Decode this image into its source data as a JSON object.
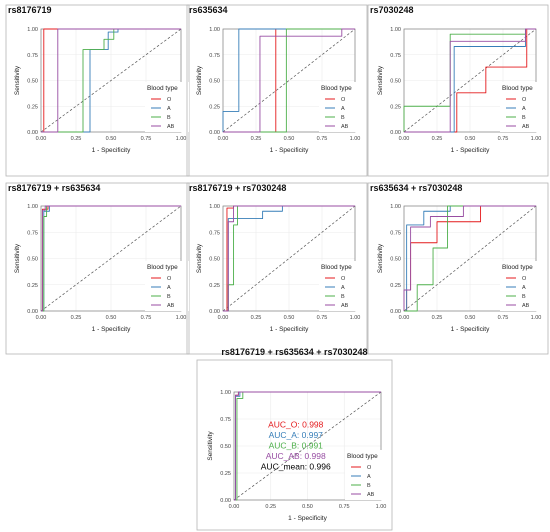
{
  "panels": [
    {
      "title": "rs8176719",
      "xlabel": "1 - Specificity",
      "ylabel": "Sensitivity",
      "legend_title": "Blood type",
      "legend_items": [
        "O",
        "A",
        "B",
        "AB"
      ]
    },
    {
      "title": "rs635634",
      "xlabel": "1 - Specificity",
      "ylabel": "Sensitivity",
      "legend_title": "Blood type",
      "legend_items": [
        "O",
        "A",
        "B",
        "AB"
      ]
    },
    {
      "title": "rs7030248",
      "xlabel": "1 - Specificity",
      "ylabel": "Sensitivity",
      "legend_title": "Blood type",
      "legend_items": [
        "O",
        "A",
        "B",
        "AB"
      ]
    },
    {
      "title": "rs8176719 + rs635634",
      "xlabel": "1 - Specificity",
      "ylabel": "Sensitivity",
      "legend_title": "Blood type",
      "legend_items": [
        "O",
        "A",
        "B",
        "AB"
      ]
    },
    {
      "title": "rs8176719 + rs7030248",
      "xlabel": "1 - Specificity",
      "ylabel": "Sensitivity",
      "legend_title": "Blood type",
      "legend_items": [
        "O",
        "A",
        "B",
        "AB"
      ]
    },
    {
      "title": "rs635634 + rs7030248",
      "xlabel": "1 - Specificity",
      "ylabel": "Sensitivity",
      "legend_title": "Blood type",
      "legend_items": [
        "O",
        "A",
        "B",
        "AB"
      ]
    },
    {
      "title": "rs8176719 + rs635634 + rs7030248",
      "xlabel": "1 - Specificity",
      "ylabel": "Sensitivity",
      "legend_title": "Blood type",
      "legend_items": [
        "O",
        "A",
        "B",
        "AB"
      ],
      "annotations": [
        {
          "text": "AUC_O: 0.998",
          "color": "#e41a1c"
        },
        {
          "text": "AUC_A: 0.997",
          "color": "#377eb8"
        },
        {
          "text": "AUC_B: 0.991",
          "color": "#4daf4a"
        },
        {
          "text": "AUC_AB: 0.998",
          "color": "#984ea3"
        },
        {
          "text": "AUC_mean: 0.996",
          "color": "#000000"
        }
      ]
    }
  ],
  "colors": {
    "O": "#e41a1c",
    "A": "#377eb8",
    "B": "#4daf4a",
    "AB": "#984ea3",
    "diagonal": "#555555",
    "grid": "#ebebeb"
  },
  "chart_data": [
    {
      "type": "line",
      "title": "rs8176719",
      "xlabel": "1 - Specificity",
      "ylabel": "Sensitivity",
      "xlim": [
        0,
        1
      ],
      "ylim": [
        0,
        1
      ],
      "x_ticks": [
        "0.00",
        "0.25",
        "0.50",
        "0.75",
        "1.00"
      ],
      "y_ticks": [
        "0.00",
        "0.25",
        "0.50",
        "0.75",
        "1.00"
      ],
      "grid": true,
      "legend_title": "Blood type",
      "legend_position": "right",
      "reference_line": [
        [
          0,
          0
        ],
        [
          1,
          1
        ]
      ],
      "series": [
        {
          "name": "O",
          "x": [
            0,
            0.02,
            0.02,
            1
          ],
          "y": [
            0,
            0,
            1,
            1
          ]
        },
        {
          "name": "A",
          "x": [
            0,
            0.35,
            0.35,
            0.48,
            0.48,
            0.55,
            0.55,
            1
          ],
          "y": [
            0,
            0,
            0.8,
            0.8,
            0.97,
            0.97,
            1,
            1
          ]
        },
        {
          "name": "B",
          "x": [
            0,
            0.3,
            0.3,
            0.45,
            0.45,
            0.52,
            0.52,
            1
          ],
          "y": [
            0,
            0,
            0.8,
            0.8,
            0.9,
            0.9,
            1,
            1
          ]
        },
        {
          "name": "AB",
          "x": [
            0,
            0.12,
            0.12,
            1
          ],
          "y": [
            0,
            0,
            1,
            1
          ]
        }
      ]
    },
    {
      "type": "line",
      "title": "rs635634",
      "xlabel": "1 - Specificity",
      "ylabel": "Sensitivity",
      "xlim": [
        0,
        1
      ],
      "ylim": [
        0,
        1
      ],
      "x_ticks": [
        "0.00",
        "0.25",
        "0.50",
        "0.75",
        "1.00"
      ],
      "y_ticks": [
        "0.00",
        "0.25",
        "0.50",
        "0.75",
        "1.00"
      ],
      "grid": true,
      "legend_title": "Blood type",
      "legend_position": "right",
      "reference_line": [
        [
          0,
          0
        ],
        [
          1,
          1
        ]
      ],
      "series": [
        {
          "name": "O",
          "x": [
            0,
            0.4,
            0.4,
            1
          ],
          "y": [
            0,
            0,
            1,
            1
          ]
        },
        {
          "name": "A",
          "x": [
            0,
            0,
            0.12,
            0.12,
            0.95,
            0.95,
            1
          ],
          "y": [
            0,
            0.2,
            0.2,
            1,
            1,
            1,
            1
          ]
        },
        {
          "name": "B",
          "x": [
            0,
            0.48,
            0.48,
            1
          ],
          "y": [
            0,
            0,
            1,
            1
          ]
        },
        {
          "name": "AB",
          "x": [
            0,
            0.28,
            0.28,
            0.9,
            0.9,
            1
          ],
          "y": [
            0,
            0,
            0.93,
            0.93,
            1,
            1
          ]
        }
      ]
    },
    {
      "type": "line",
      "title": "rs7030248",
      "xlabel": "1 - Specificity",
      "ylabel": "Sensitivity",
      "xlim": [
        0,
        1
      ],
      "ylim": [
        0,
        1
      ],
      "x_ticks": [
        "0.00",
        "0.25",
        "0.50",
        "0.75",
        "1.00"
      ],
      "y_ticks": [
        "0.00",
        "0.25",
        "0.50",
        "0.75",
        "1.00"
      ],
      "grid": true,
      "legend_title": "Blood type",
      "legend_position": "right",
      "reference_line": [
        [
          0,
          0
        ],
        [
          1,
          1
        ]
      ],
      "series": [
        {
          "name": "O",
          "x": [
            0,
            0.4,
            0.4,
            0.62,
            0.62,
            0.93,
            0.93,
            1
          ],
          "y": [
            0,
            0,
            0.38,
            0.38,
            0.63,
            0.63,
            1,
            1
          ]
        },
        {
          "name": "A",
          "x": [
            0,
            0.38,
            0.38,
            0.92,
            0.92,
            1
          ],
          "y": [
            0,
            0,
            0.83,
            0.83,
            1,
            1
          ]
        },
        {
          "name": "B",
          "x": [
            0,
            0,
            0.35,
            0.35,
            0.92,
            0.92,
            1
          ],
          "y": [
            0,
            0.25,
            0.25,
            0.95,
            0.95,
            1,
            1
          ]
        },
        {
          "name": "AB",
          "x": [
            0,
            0.35,
            0.35,
            0.92,
            0.92,
            1
          ],
          "y": [
            0,
            0,
            0.88,
            0.88,
            1,
            1
          ]
        }
      ]
    },
    {
      "type": "line",
      "title": "rs8176719 + rs635634",
      "xlabel": "1 - Specificity",
      "ylabel": "Sensitivity",
      "xlim": [
        0,
        1
      ],
      "ylim": [
        0,
        1
      ],
      "x_ticks": [
        "0.00",
        "0.25",
        "0.50",
        "0.75",
        "1.00"
      ],
      "y_ticks": [
        "0.00",
        "0.25",
        "0.50",
        "0.75",
        "1.00"
      ],
      "grid": true,
      "legend_title": "Blood type",
      "legend_position": "right",
      "reference_line": [
        [
          0,
          0
        ],
        [
          1,
          1
        ]
      ],
      "series": [
        {
          "name": "O",
          "x": [
            0,
            0.01,
            0.01,
            0.05,
            0.05,
            1
          ],
          "y": [
            0,
            0,
            0.97,
            0.97,
            1,
            1
          ]
        },
        {
          "name": "A",
          "x": [
            0,
            0.02,
            0.02,
            0.06,
            0.06,
            1
          ],
          "y": [
            0,
            0,
            0.95,
            0.95,
            1,
            1
          ]
        },
        {
          "name": "B",
          "x": [
            0,
            0.02,
            0.02,
            0.04,
            0.04,
            1
          ],
          "y": [
            0,
            0,
            0.9,
            0.9,
            1,
            1
          ]
        },
        {
          "name": "AB",
          "x": [
            0,
            0.01,
            0.01,
            0.03,
            0.03,
            1
          ],
          "y": [
            0,
            0,
            0.96,
            0.96,
            1,
            1
          ]
        }
      ]
    },
    {
      "type": "line",
      "title": "rs8176719 + rs7030248",
      "xlabel": "1 - Specificity",
      "ylabel": "Sensitivity",
      "xlim": [
        0,
        1
      ],
      "ylim": [
        0,
        1
      ],
      "x_ticks": [
        "0.00",
        "0.25",
        "0.50",
        "0.75",
        "1.00"
      ],
      "y_ticks": [
        "0.00",
        "0.25",
        "0.50",
        "0.75",
        "1.00"
      ],
      "grid": true,
      "legend_title": "Blood type",
      "legend_position": "right",
      "reference_line": [
        [
          0,
          0
        ],
        [
          1,
          1
        ]
      ],
      "series": [
        {
          "name": "O",
          "x": [
            0,
            0.03,
            0.03,
            0.08,
            0.08,
            1
          ],
          "y": [
            0,
            0,
            0.98,
            0.98,
            1,
            1
          ]
        },
        {
          "name": "A",
          "x": [
            0,
            0.04,
            0.04,
            0.3,
            0.3,
            0.45,
            0.45,
            1
          ],
          "y": [
            0,
            0,
            0.88,
            0.88,
            0.95,
            0.95,
            1,
            1
          ]
        },
        {
          "name": "B",
          "x": [
            0,
            0.04,
            0.04,
            0.08,
            0.08,
            0.11,
            0.11,
            1
          ],
          "y": [
            0,
            0,
            0.25,
            0.25,
            0.82,
            0.82,
            1,
            1
          ]
        },
        {
          "name": "AB",
          "x": [
            0,
            0.04,
            0.04,
            0.08,
            0.08,
            1
          ],
          "y": [
            0,
            0,
            0.85,
            0.85,
            1,
            1
          ]
        }
      ]
    },
    {
      "type": "line",
      "title": "rs635634 + rs7030248",
      "xlabel": "1 - Specificity",
      "ylabel": "Sensitivity",
      "xlim": [
        0,
        1
      ],
      "ylim": [
        0,
        1
      ],
      "x_ticks": [
        "0.00",
        "0.25",
        "0.50",
        "0.75",
        "1.00"
      ],
      "y_ticks": [
        "0.00",
        "0.25",
        "0.50",
        "0.75",
        "1.00"
      ],
      "grid": true,
      "legend_title": "Blood type",
      "legend_position": "right",
      "reference_line": [
        [
          0,
          0
        ],
        [
          1,
          1
        ]
      ],
      "series": [
        {
          "name": "O",
          "x": [
            0,
            0.02,
            0.02,
            0.05,
            0.05,
            0.25,
            0.25,
            0.58,
            0.58,
            1
          ],
          "y": [
            0,
            0,
            0.2,
            0.2,
            0.65,
            0.65,
            0.85,
            0.85,
            1,
            1
          ]
        },
        {
          "name": "A",
          "x": [
            0,
            0.02,
            0.02,
            0.15,
            0.15,
            0.35,
            0.35,
            1
          ],
          "y": [
            0,
            0,
            0.82,
            0.82,
            0.95,
            0.95,
            1,
            1
          ]
        },
        {
          "name": "B",
          "x": [
            0,
            0.1,
            0.1,
            0.22,
            0.22,
            0.33,
            0.33,
            1
          ],
          "y": [
            0,
            0,
            0.25,
            0.25,
            0.6,
            0.6,
            1,
            1
          ]
        },
        {
          "name": "AB",
          "x": [
            0,
            0,
            0.05,
            0.05,
            0.2,
            0.2,
            0.45,
            0.45,
            1
          ],
          "y": [
            0,
            0.2,
            0.2,
            0.8,
            0.8,
            0.9,
            0.9,
            1,
            1
          ]
        }
      ]
    },
    {
      "type": "line",
      "title": "rs8176719 + rs635634 + rs7030248",
      "xlabel": "1 - Specificity",
      "ylabel": "Sensitivity",
      "xlim": [
        0,
        1
      ],
      "ylim": [
        0,
        1
      ],
      "x_ticks": [
        "0.00",
        "0.25",
        "0.50",
        "0.75",
        "1.00"
      ],
      "y_ticks": [
        "0.00",
        "0.25",
        "0.50",
        "0.75",
        "1.00"
      ],
      "grid": true,
      "legend_title": "Blood type",
      "legend_position": "right",
      "reference_line": [
        [
          0,
          0
        ],
        [
          1,
          1
        ]
      ],
      "series": [
        {
          "name": "O",
          "x": [
            0,
            0.01,
            0.01,
            0.03,
            0.03,
            1
          ],
          "y": [
            0,
            0,
            0.97,
            0.97,
            1,
            1
          ]
        },
        {
          "name": "A",
          "x": [
            0,
            0.01,
            0.01,
            0.04,
            0.04,
            1
          ],
          "y": [
            0,
            0,
            0.96,
            0.96,
            1,
            1
          ]
        },
        {
          "name": "B",
          "x": [
            0,
            0.02,
            0.02,
            0.06,
            0.06,
            1
          ],
          "y": [
            0,
            0,
            0.94,
            0.94,
            1,
            1
          ]
        },
        {
          "name": "AB",
          "x": [
            0,
            0.01,
            0.01,
            0.03,
            0.03,
            1
          ],
          "y": [
            0,
            0,
            0.97,
            0.97,
            1,
            1
          ]
        }
      ]
    }
  ]
}
